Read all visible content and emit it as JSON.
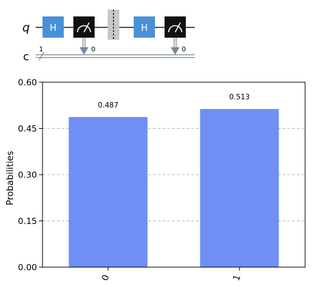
{
  "circuit": {
    "qubit_label": "q",
    "classical_label": "c",
    "register_size": "1",
    "gates": [
      "H",
      "measure",
      "barrier",
      "H",
      "measure"
    ],
    "measure_targets": [
      "0",
      "0"
    ],
    "colors": {
      "h_gate": "#4A90D9",
      "measure": "#111111",
      "wire": "#222222",
      "classical_wire": "#778899",
      "barrier": "#c8c8c8"
    }
  },
  "chart_data": {
    "type": "bar",
    "categories": [
      "0",
      "1"
    ],
    "values": [
      0.487,
      0.513
    ],
    "data_labels": [
      "0.487",
      "0.513"
    ],
    "title": "",
    "xlabel": "",
    "ylabel": "Probabilities",
    "ylim": [
      0.0,
      0.6
    ],
    "yticks": [
      0.0,
      0.15,
      0.3,
      0.45,
      0.6
    ],
    "ytick_labels": [
      "0.00",
      "0.15",
      "0.30",
      "0.45",
      "0.60"
    ],
    "grid": true,
    "bar_color": "#6f8ff5",
    "xtick_rotation_deg": 70
  }
}
